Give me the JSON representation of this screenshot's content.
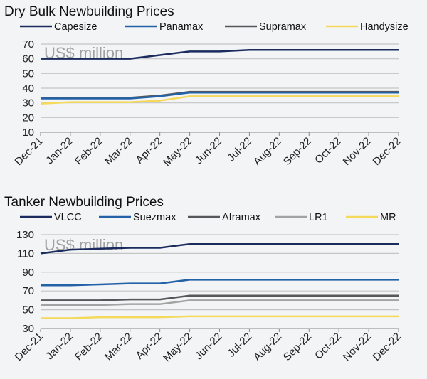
{
  "chart_data": [
    {
      "type": "line",
      "title": "Dry Bulk Newbuilding Prices",
      "unit_label": "US$ million",
      "categories": [
        "Dec-21",
        "Jan-22",
        "Feb-22",
        "Mar-22",
        "Apr-22",
        "May-22",
        "Jun-22",
        "Jul-22",
        "Aug-22",
        "Sep-22",
        "Oct-22",
        "Nov-22",
        "Dec-22"
      ],
      "ylim": [
        10,
        70
      ],
      "yticks": [
        10,
        20,
        30,
        40,
        50,
        60,
        70
      ],
      "grid": true,
      "legend": "top",
      "series": [
        {
          "name": "Capesize",
          "color": "#1b2b5e",
          "values": [
            60,
            60,
            60,
            60,
            62.5,
            65,
            65,
            66,
            66,
            66,
            66,
            66,
            66
          ]
        },
        {
          "name": "Panamax",
          "color": "#2462a8",
          "values": [
            33,
            33,
            33,
            33,
            34.5,
            37,
            37,
            37,
            37,
            37,
            37,
            37,
            37
          ]
        },
        {
          "name": "Supramax",
          "color": "#55585b",
          "values": [
            33.5,
            33.5,
            33.5,
            33.5,
            35,
            37.5,
            37.5,
            37.5,
            37.5,
            37.5,
            37.5,
            37.5,
            37.5
          ]
        },
        {
          "name": "Handysize",
          "color": "#f4d95a",
          "values": [
            29.5,
            30.5,
            30.5,
            30.5,
            31.5,
            34.5,
            34.5,
            34.5,
            34.5,
            34.5,
            34.5,
            34.5,
            34.5
          ]
        }
      ]
    },
    {
      "type": "line",
      "title": "Tanker Newbuilding Prices",
      "unit_label": "US$ million",
      "categories": [
        "Dec-21",
        "Jan-22",
        "Feb-22",
        "Mar-22",
        "Apr-22",
        "May-22",
        "Jun-22",
        "Jul-22",
        "Aug-22",
        "Sep-22",
        "Oct-22",
        "Nov-22",
        "Dec-22"
      ],
      "ylim": [
        30,
        130
      ],
      "yticks": [
        30,
        50,
        70,
        90,
        110,
        130
      ],
      "grid": true,
      "legend": "top",
      "series": [
        {
          "name": "VLCC",
          "color": "#1b2b5e",
          "values": [
            110,
            114,
            115,
            116,
            116,
            120,
            120,
            120,
            120,
            120,
            120,
            120,
            120
          ]
        },
        {
          "name": "Suezmax",
          "color": "#2462a8",
          "values": [
            76,
            76,
            77,
            78,
            78,
            82,
            82,
            82,
            82,
            82,
            82,
            82,
            82
          ]
        },
        {
          "name": "Aframax",
          "color": "#55585b",
          "values": [
            60,
            60,
            60,
            61,
            61,
            65,
            65,
            65,
            65,
            65,
            65,
            65,
            65
          ]
        },
        {
          "name": "LR1",
          "color": "#a3a3a3",
          "values": [
            55,
            55,
            55,
            56,
            56,
            60,
            60,
            60,
            60,
            60,
            60,
            60,
            60
          ]
        },
        {
          "name": "MR",
          "color": "#f4d95a",
          "values": [
            41,
            41,
            42,
            42,
            42,
            43,
            43,
            43,
            43,
            43,
            43,
            43,
            43
          ]
        }
      ]
    }
  ]
}
